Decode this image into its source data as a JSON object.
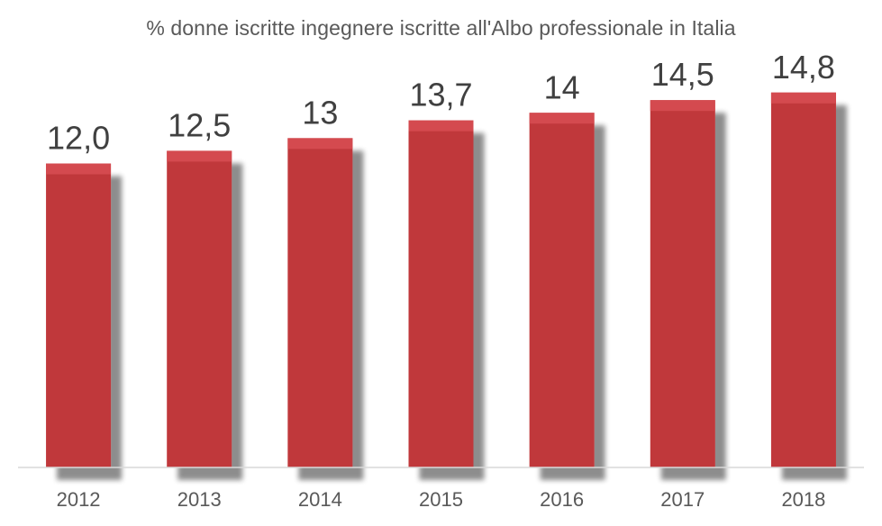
{
  "chart_data": {
    "type": "bar",
    "title": "% donne  iscritte ingegnere iscritte all'Albo professionale  in Italia",
    "xlabel": "",
    "ylabel": "",
    "categories": [
      "2012",
      "2013",
      "2014",
      "2015",
      "2016",
      "2017",
      "2018"
    ],
    "values": [
      12.0,
      12.5,
      13,
      13.7,
      14,
      14.5,
      14.8
    ],
    "data_labels": [
      "12,0",
      "12,5",
      "13",
      "13,7",
      "14",
      "14,5",
      "14,8"
    ],
    "ylim": [
      0,
      16
    ],
    "grid": false,
    "legend": "none",
    "bar_color": "#c0373b",
    "bar_top_color": "#d44a4f",
    "shadow_color": "#b8b8b8"
  }
}
